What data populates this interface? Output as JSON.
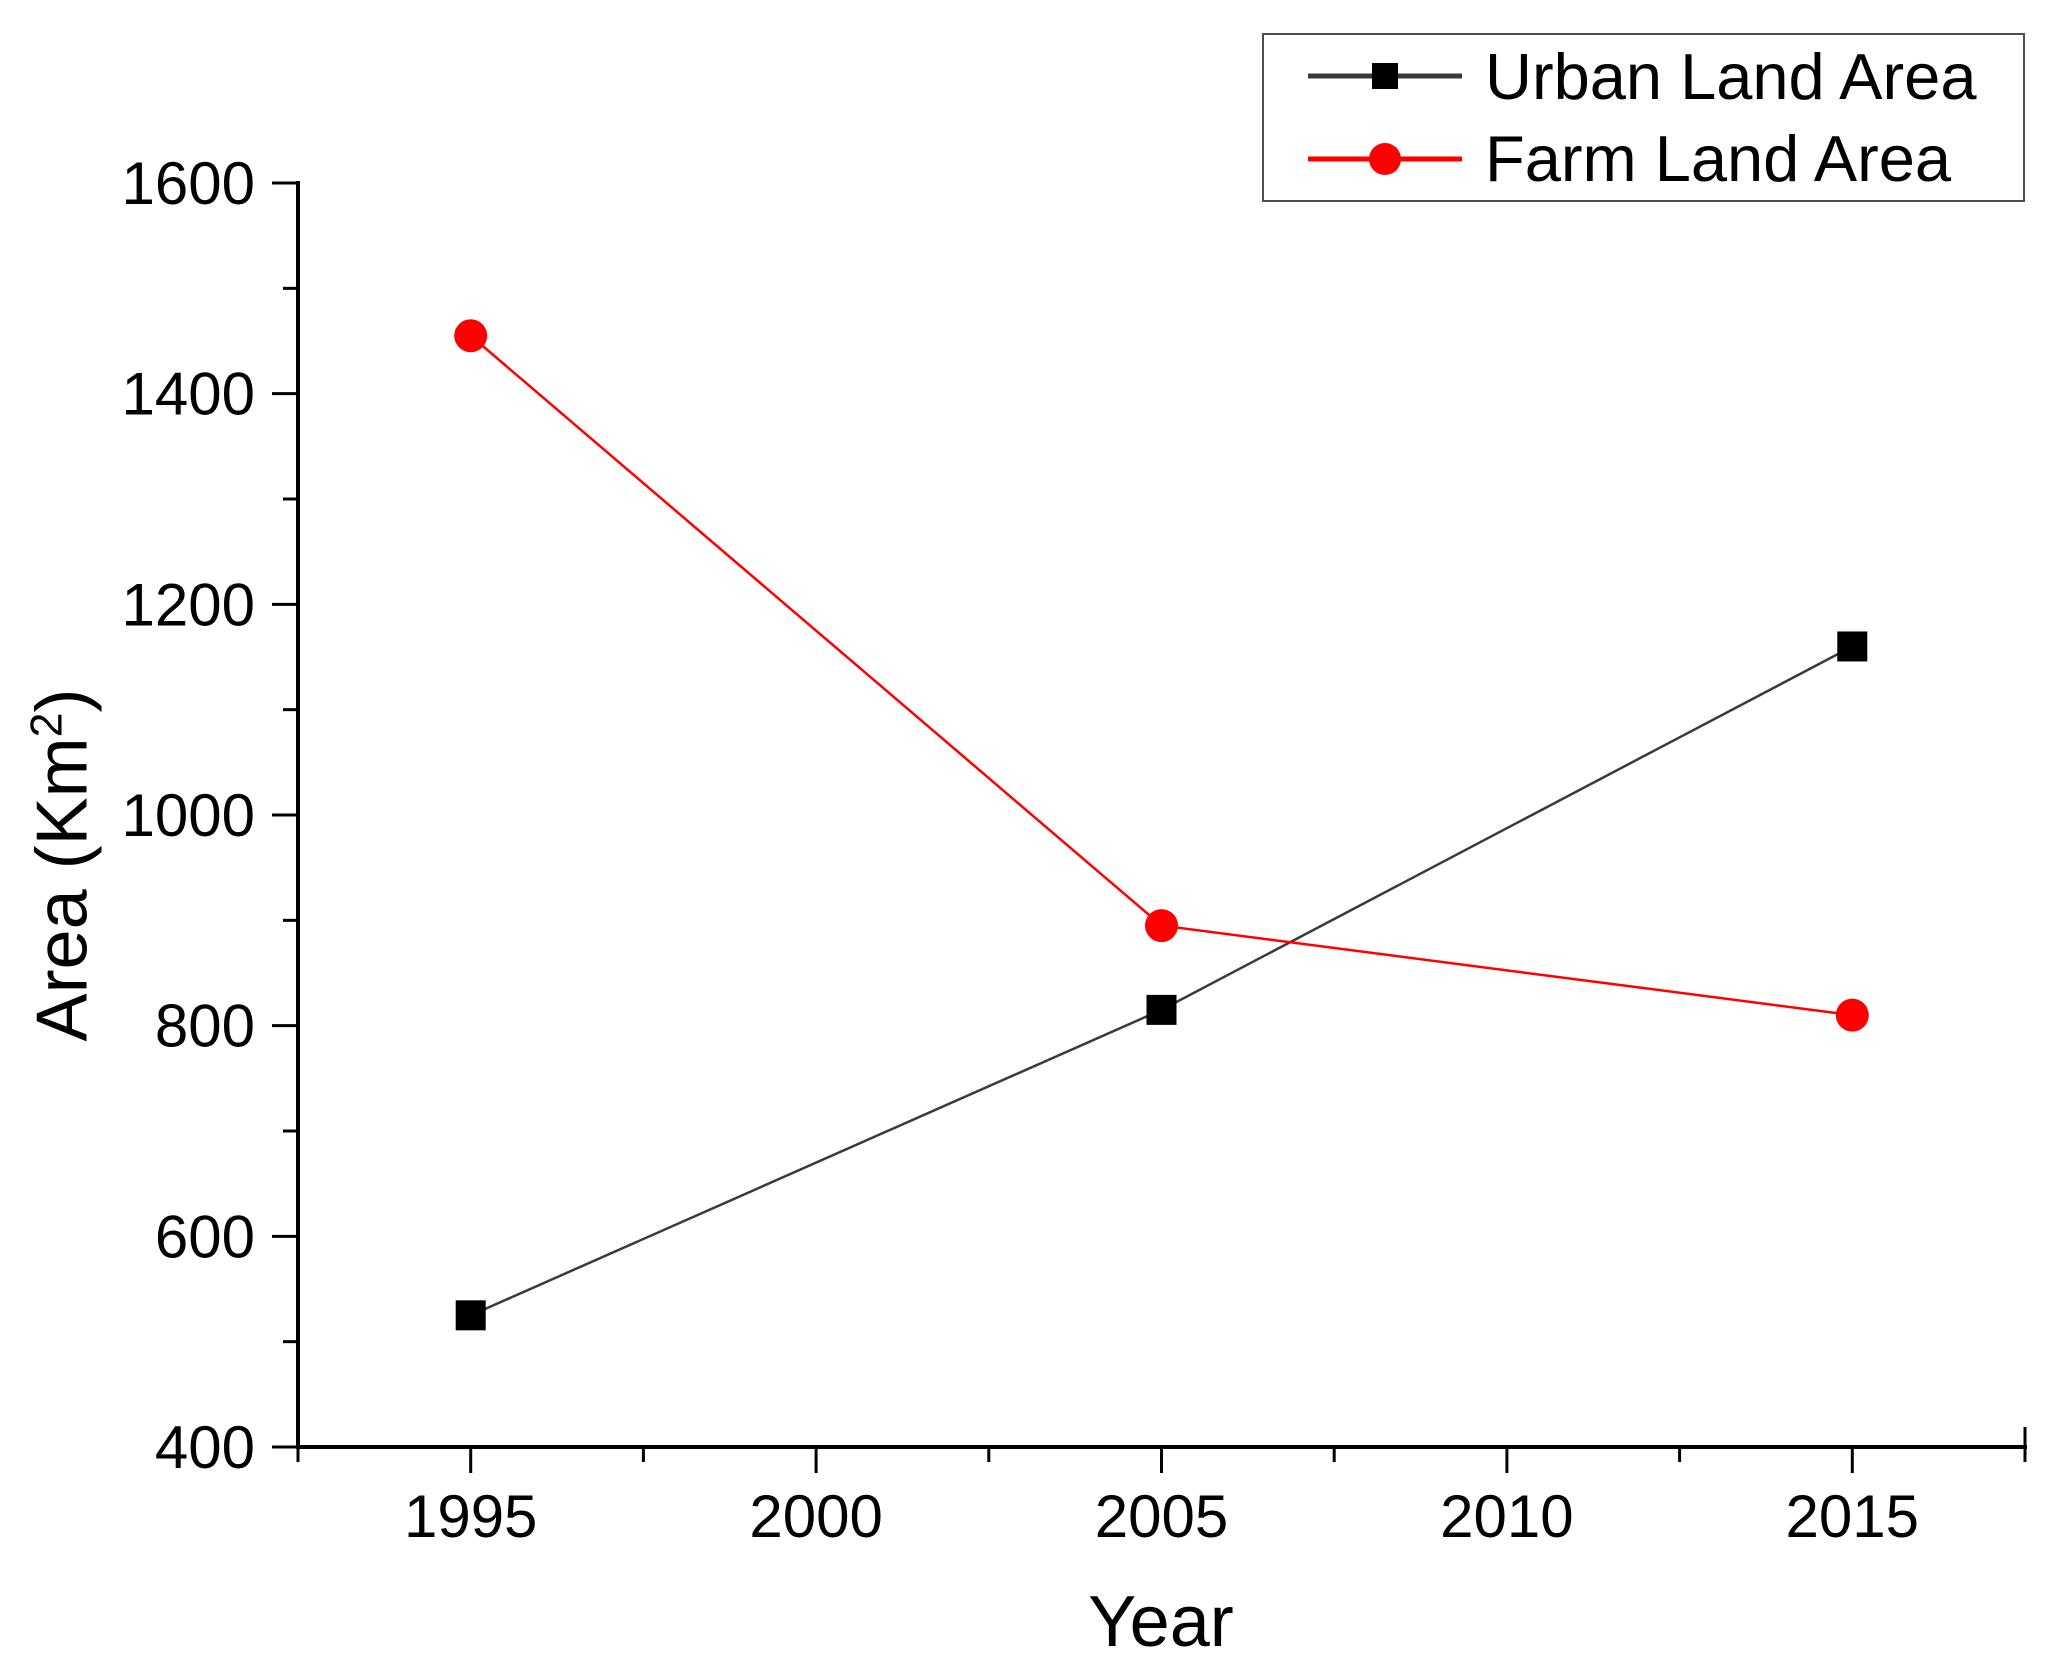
{
  "chart_data": {
    "type": "line",
    "title": "",
    "background": "#ffffff",
    "grid": false,
    "legend_position": "top-right",
    "x": {
      "label": "Year",
      "lim": [
        1992.5,
        2017.5
      ],
      "major_ticks": [
        1995,
        2000,
        2005,
        2010,
        2015
      ],
      "minor_tick_step": 2.5
    },
    "y": {
      "label_prefix": "Area (Km",
      "label_sup": "2",
      "label_suffix": ")",
      "lim": [
        400,
        1600
      ],
      "major_ticks": [
        400,
        600,
        800,
        1000,
        1200,
        1400,
        1600
      ],
      "minor_tick_step": 100
    },
    "series": [
      {
        "name": "Urban Land Area",
        "marker": "square",
        "line_color": "#3a3a3a",
        "marker_color": "#000000",
        "x": [
          1995,
          2005,
          2015
        ],
        "values": [
          525,
          815,
          1160
        ]
      },
      {
        "name": "Farm Land Area",
        "marker": "circle",
        "line_color": "#ff0000",
        "marker_color": "#ff0000",
        "x": [
          1995,
          2005,
          2015
        ],
        "values": [
          1455,
          895,
          810
        ]
      }
    ]
  }
}
